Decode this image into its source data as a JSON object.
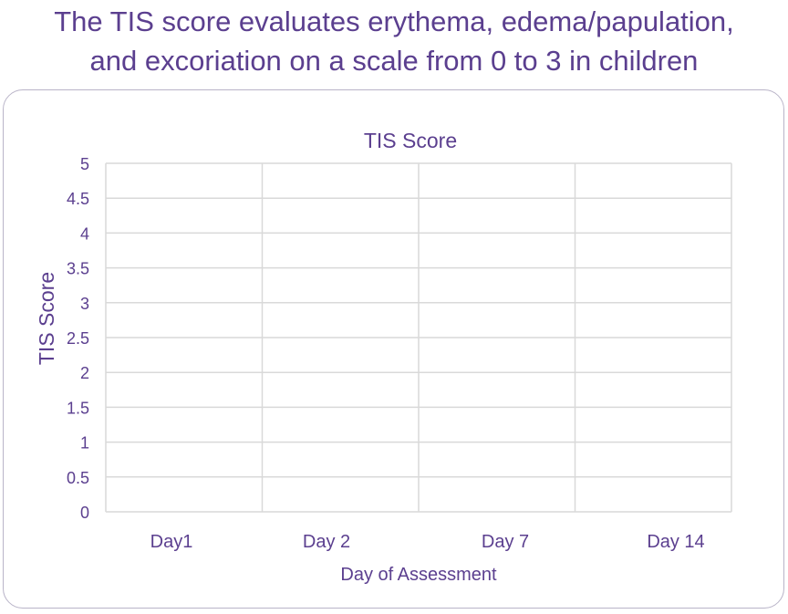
{
  "headline": {
    "line1": "The TIS score evaluates erythema, edema/papulation,",
    "line2": "and excoriation on a scale from 0 to 3 in children"
  },
  "colors": {
    "text": "#5b3f8f",
    "gridline": "#d9d9d9",
    "panel_border": "#b9b4c8"
  },
  "chart_data": {
    "type": "line",
    "title": "TIS Score",
    "xlabel": "Day of Assessment",
    "ylabel": "TIS Score",
    "categories": [
      "Day1",
      "Day 2",
      "Day 7",
      "Day 14"
    ],
    "ylim": [
      0,
      5
    ],
    "yticks": [
      "0",
      "0.5",
      "1",
      "1.5",
      "2",
      "2.5",
      "3",
      "3.5",
      "4",
      "4.5",
      "5"
    ],
    "series": [],
    "grid": true,
    "legend": "none"
  }
}
